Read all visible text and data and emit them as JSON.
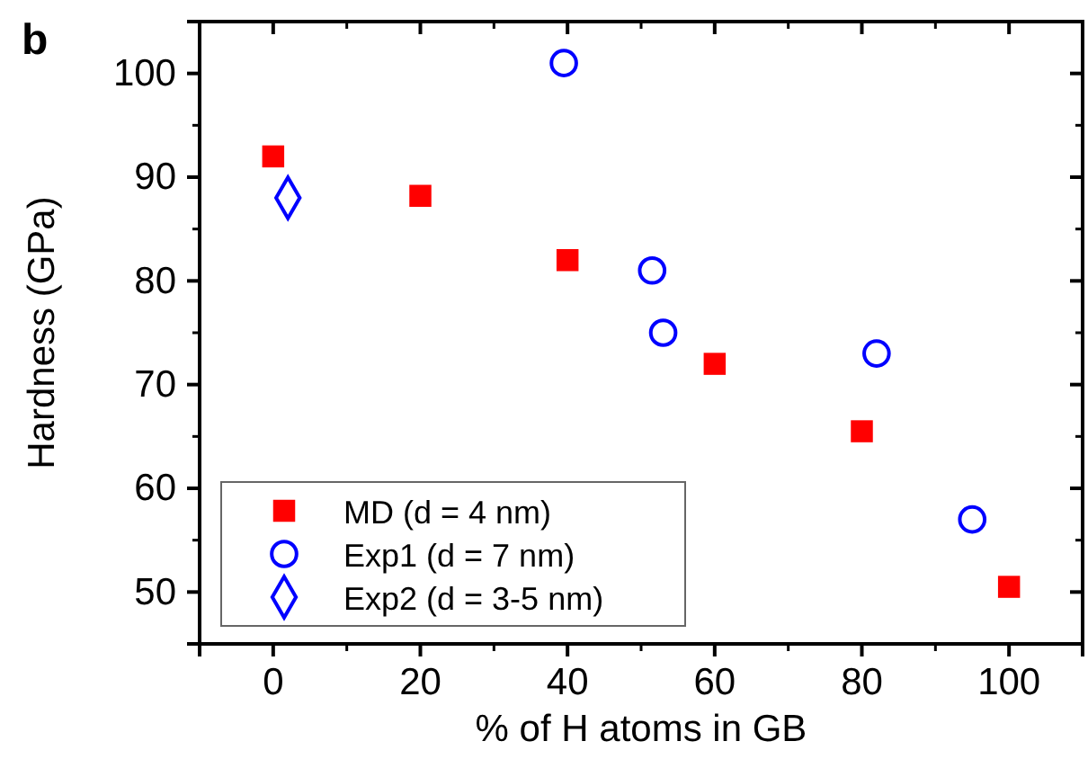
{
  "chart_data": {
    "type": "scatter",
    "title": "b",
    "xlabel": "% of H atoms in GB",
    "ylabel": "Hardness (GPa)",
    "xlim": [
      -10,
      110
    ],
    "xticks": [
      0,
      20,
      40,
      60,
      80,
      100
    ],
    "ylim": [
      45,
      105
    ],
    "yticks": [
      50,
      60,
      70,
      80,
      90,
      100
    ],
    "grid": false,
    "legend": "bottom left",
    "series": [
      {
        "name": "MD (d = 4 nm)",
        "color": "#ff0000",
        "marker": "square",
        "x": [
          0,
          20,
          40,
          60,
          80,
          100
        ],
        "values": [
          92,
          88.2,
          82,
          72,
          65.5,
          50.5
        ]
      },
      {
        "name": "Exp1 (d = 7 nm)",
        "color": "#0000ff",
        "marker": "circle",
        "x": [
          39.5,
          51.5,
          53,
          82,
          95
        ],
        "values": [
          101,
          81,
          75,
          73,
          57
        ]
      },
      {
        "name": "Exp2 (d = 3-5 nm)",
        "color": "#0000ff",
        "marker": "diamond",
        "x": [
          2
        ],
        "values": [
          88
        ]
      }
    ]
  }
}
